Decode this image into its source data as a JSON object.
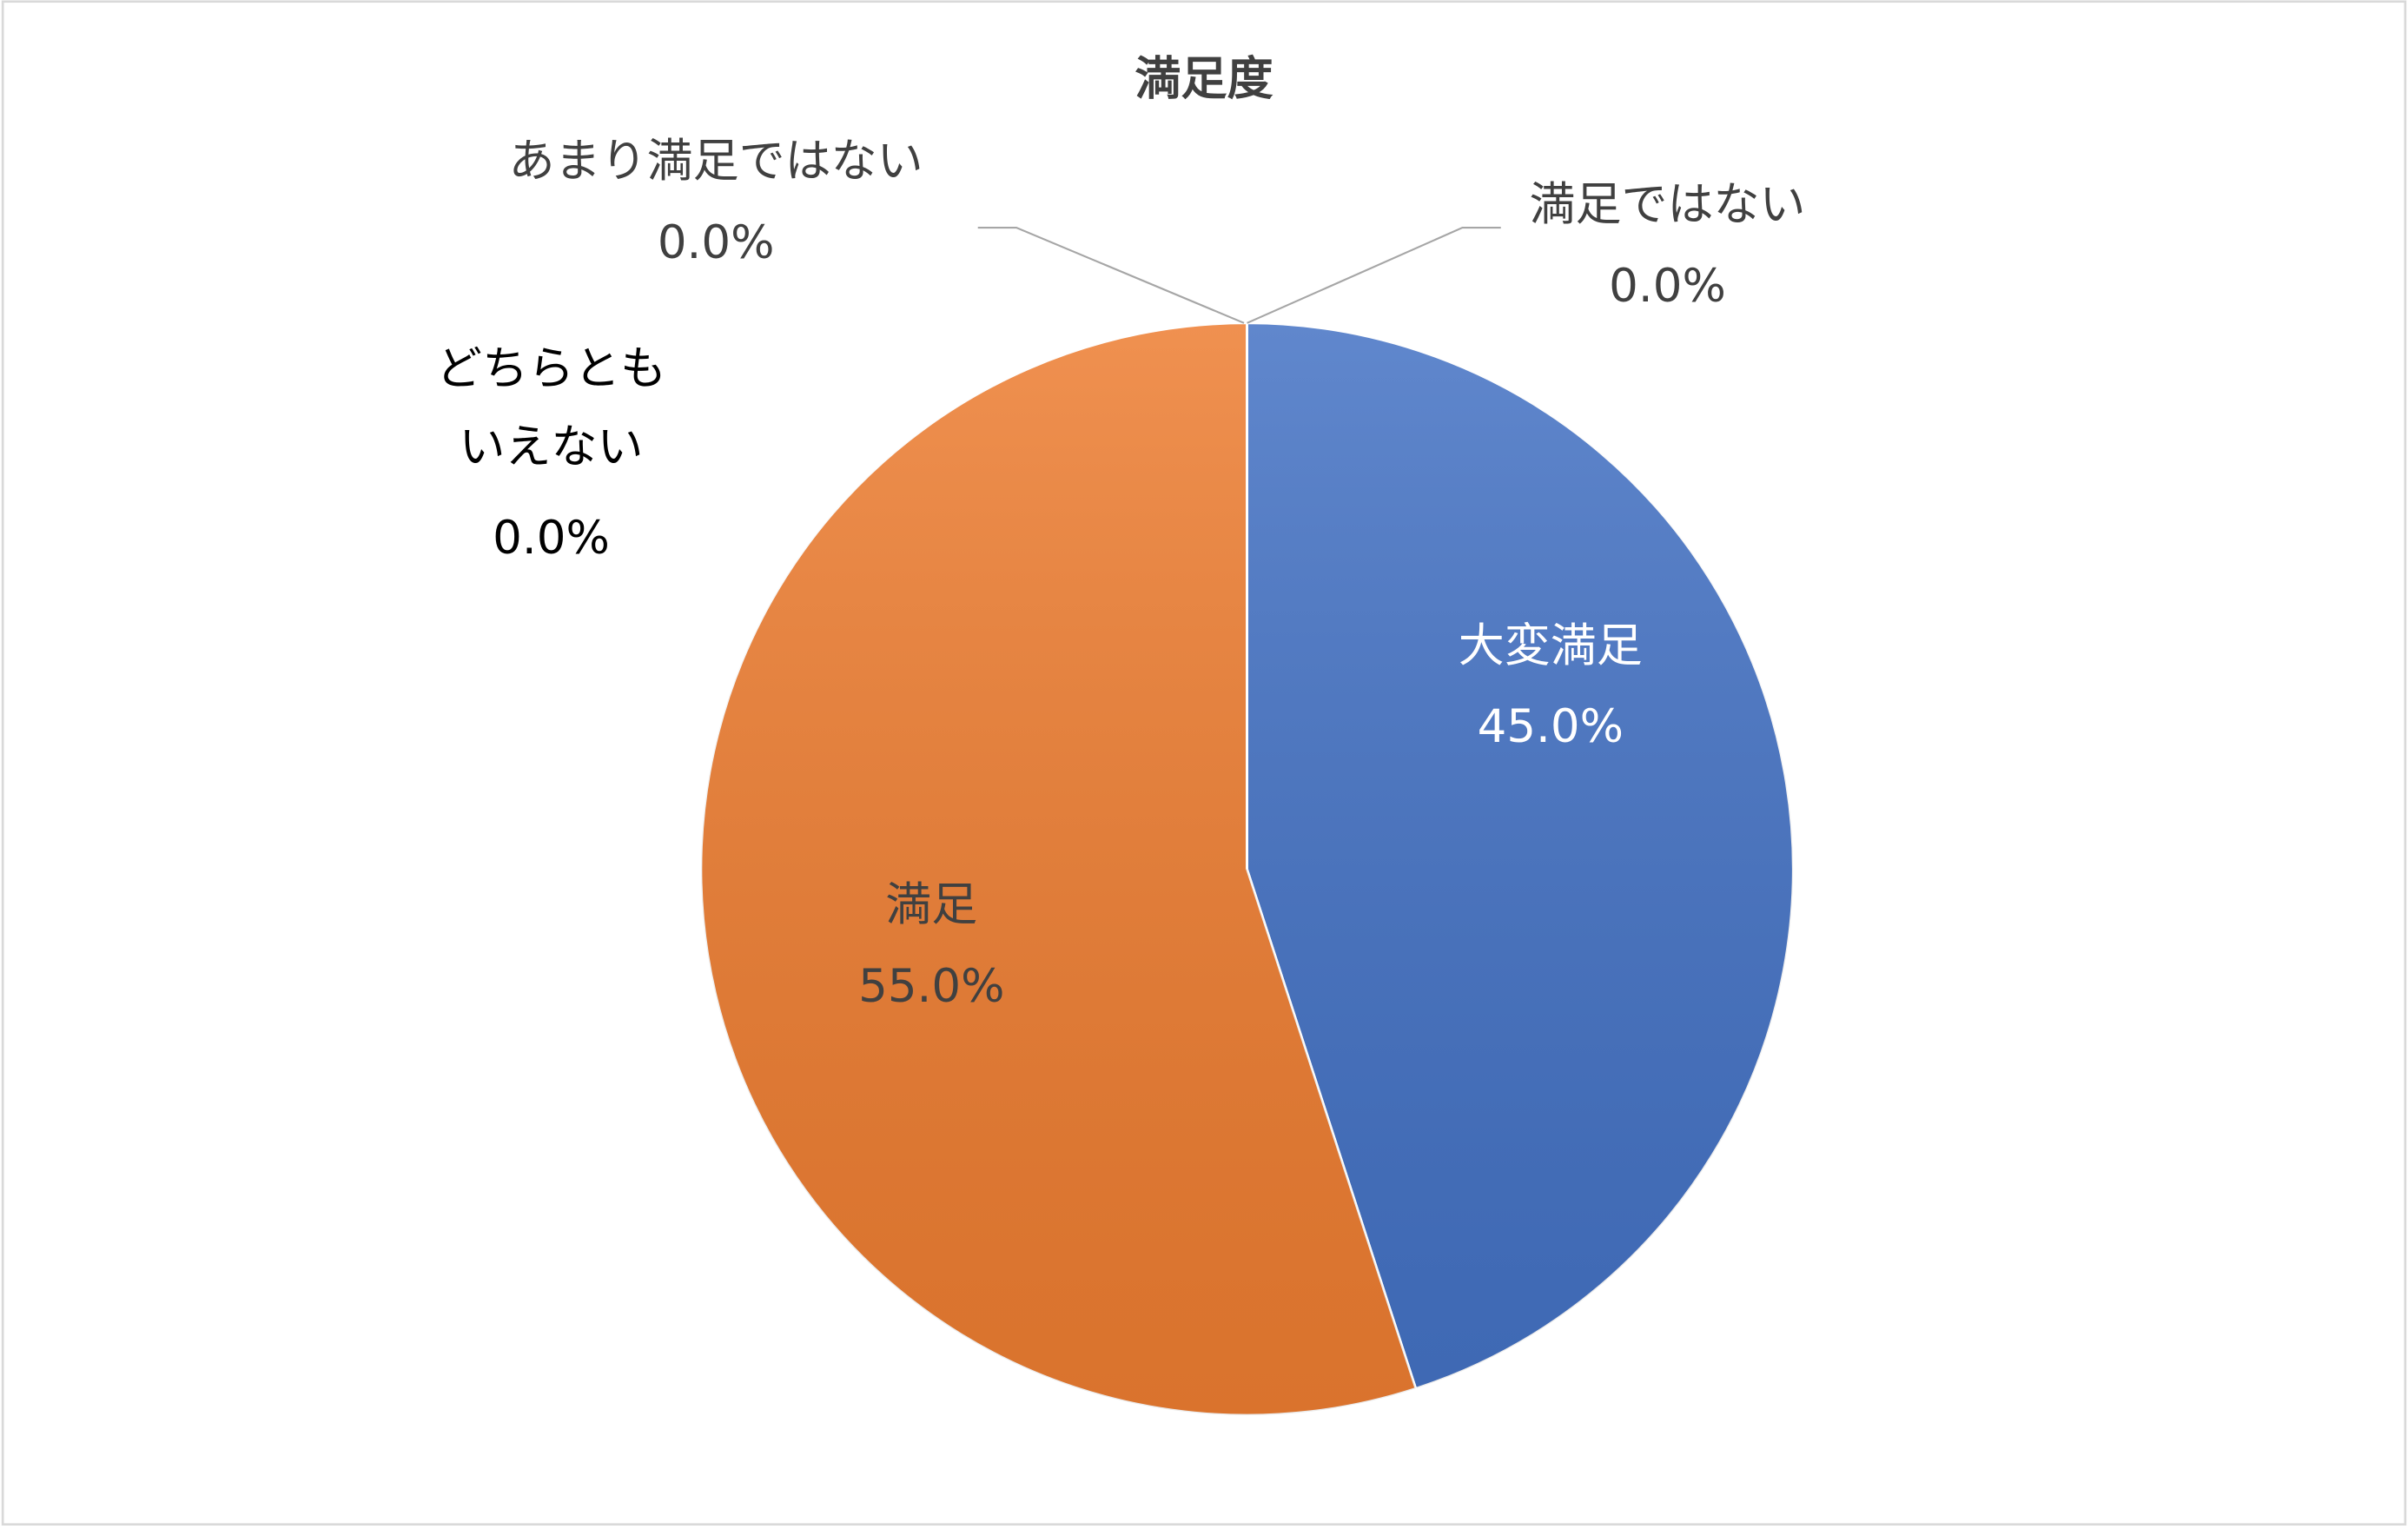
{
  "chart_data": {
    "type": "pie",
    "title": "満足度",
    "categories": [
      "大変満足",
      "満足",
      "どちらともいえない",
      "あまり満足ではない",
      "満足ではない"
    ],
    "values": [
      45,
      55,
      0,
      0,
      0
    ],
    "value_labels": [
      "45.0%",
      "55.0%",
      "0.0%",
      "0.0%",
      "0.0%"
    ],
    "colors": [
      "#4472c4",
      "#ed7d31",
      "#a5a5a5",
      "#ffc000",
      "#5b9bd5"
    ]
  }
}
